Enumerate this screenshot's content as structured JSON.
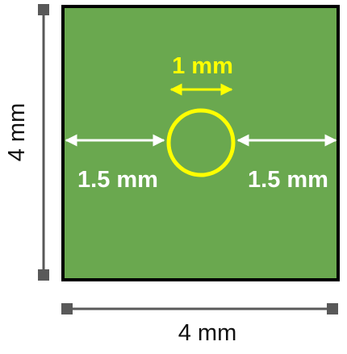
{
  "square": {
    "fill_color": "#6aa84f",
    "stroke_color": "#000000"
  },
  "hole": {
    "ring_color": "#ffff00",
    "label": "1 mm"
  },
  "margins": {
    "left_label": "1.5 mm",
    "right_label": "1.5 mm",
    "arrow_color": "#ffffff"
  },
  "dimensions": {
    "height_label": "4 mm",
    "width_label": "4 mm",
    "line_color": "#595959"
  }
}
